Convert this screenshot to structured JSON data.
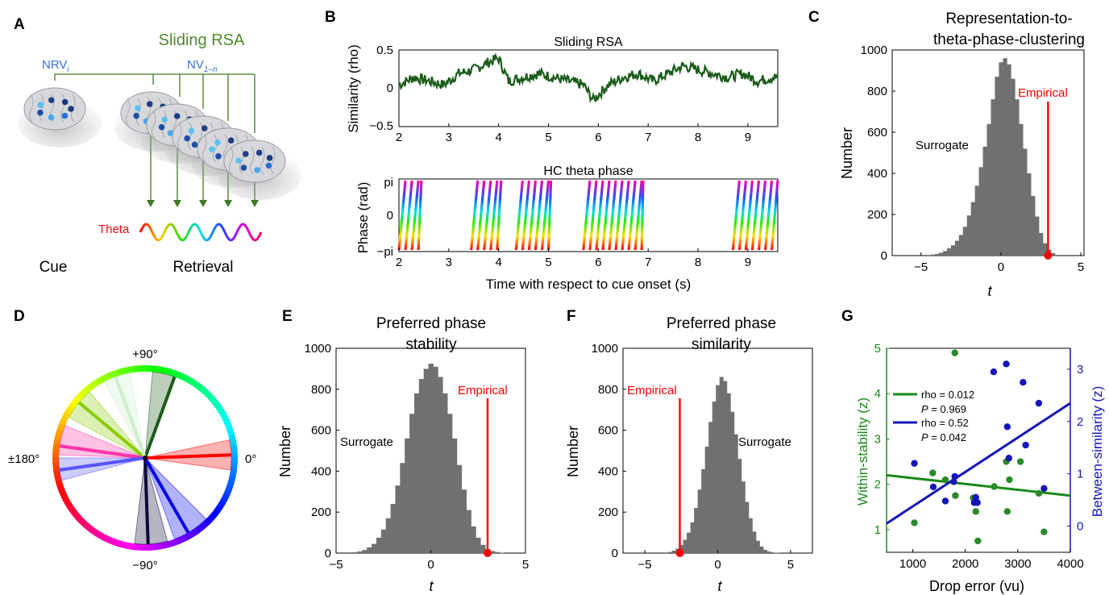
{
  "panel_labels": [
    "A",
    "B",
    "C",
    "D",
    "E",
    "F",
    "G"
  ],
  "colors": {
    "green": "#1a5c1a",
    "gray": "#707070",
    "red": "#ff0000",
    "blue": "#1515b8",
    "lightgreen": "#1a8a1a",
    "sliding_rsa_title": "#4f8a2c",
    "nrv_blue": "#3b6fd4"
  },
  "panel_a": {
    "title": "Sliding RSA",
    "nrv_label": "NRV",
    "nrv_sub": "i",
    "nv_label": "NV",
    "nv_sub": "1–n",
    "theta_label": "Theta",
    "cue_label": "Cue",
    "retrieval_label": "Retrieval",
    "icons": [
      "brain-icon"
    ]
  },
  "panel_b": {
    "rsa_title": "Sliding RSA",
    "rsa_ylabel": "Similarity (rho)",
    "rsa_yticks": [
      "0.5",
      "0",
      "−0.5"
    ],
    "phase_title": "HC theta phase",
    "phase_ylabel": "Phase (rad)",
    "phase_yticks": [
      "pi",
      "0",
      "−pi"
    ],
    "xticks": [
      "2",
      "3",
      "4",
      "5",
      "6",
      "7",
      "8",
      "9"
    ],
    "xlabel": "Time with respect to cue onset (s)"
  },
  "panel_c": {
    "title_line1": "Representation-to-",
    "title_line2": "theta-phase-clustering",
    "ylabel": "Number",
    "xlabel": "t",
    "surrogate_label": "Surrogate",
    "empirical_label": "Empirical",
    "yticks": [
      "1000",
      "800",
      "600",
      "400",
      "200",
      "0"
    ],
    "xticks": [
      "−5",
      "0",
      "5"
    ]
  },
  "panel_d": {
    "labels": [
      "+90°",
      "0°",
      "−90°",
      "±180°"
    ]
  },
  "panel_e": {
    "title_line1": "Preferred phase",
    "title_line2": "stability",
    "ylabel": "Number",
    "xlabel": "t",
    "surrogate_label": "Surrogate",
    "empirical_label": "Empirical",
    "yticks": [
      "1000",
      "800",
      "600",
      "400",
      "200",
      "0"
    ],
    "xticks": [
      "−5",
      "0",
      "5"
    ]
  },
  "panel_f": {
    "title_line1": "Preferred phase",
    "title_line2": "similarity",
    "ylabel": "Number",
    "xlabel": "t",
    "surrogate_label": "Surrogate",
    "empirical_label": "Empirical",
    "yticks": [
      "1000",
      "800",
      "600",
      "400",
      "200",
      "0"
    ],
    "xticks": [
      "−5",
      "0",
      "5"
    ]
  },
  "panel_g": {
    "ylabel_left": "Within-stability (z)",
    "ylabel_right": "Between-similarity (z)",
    "xlabel": "Drop error (vu)",
    "legend_green_rho": "rho = 0.012",
    "legend_green_p_label": "P",
    "legend_green_p": " = 0.969",
    "legend_blue_rho": "rho = 0.52",
    "legend_blue_p_label": "P",
    "legend_blue_p": " = 0.042",
    "yticks_left": [
      "5",
      "4",
      "3",
      "2",
      "1"
    ],
    "yticks_right": [
      "3",
      "2",
      "1",
      "0"
    ],
    "xticks": [
      "1000",
      "2000",
      "3000",
      "4000"
    ]
  },
  "chart_data": [
    {
      "panel": "B-top",
      "type": "line",
      "title": "Sliding RSA",
      "ylabel": "Similarity (rho)",
      "xlabel": "Time with respect to cue onset (s)",
      "xlim": [
        2,
        9.6
      ],
      "ylim": [
        -0.5,
        0.5
      ],
      "series": [
        {
          "x": [
            2.0,
            2.3,
            2.6,
            2.9,
            3.2,
            3.5,
            3.8,
            4.0,
            4.2,
            4.5,
            4.8,
            5.1,
            5.4,
            5.7,
            5.9,
            6.2,
            6.5,
            6.8,
            7.1,
            7.4,
            7.7,
            8.0,
            8.3,
            8.6,
            8.9,
            9.2,
            9.5
          ],
          "y": [
            0.05,
            0.15,
            0.1,
            0.05,
            0.2,
            0.25,
            0.35,
            0.4,
            0.1,
            0.15,
            0.2,
            0.15,
            0.1,
            0.05,
            -0.15,
            0.05,
            0.15,
            0.2,
            0.1,
            0.2,
            0.3,
            0.25,
            0.2,
            0.15,
            0.2,
            0.1,
            0.15
          ]
        }
      ]
    },
    {
      "panel": "B-bottom",
      "type": "line",
      "title": "HC theta phase",
      "ylabel": "Phase (rad)",
      "xlabel": "Time with respect to cue onset (s)",
      "xlim": [
        2,
        9.6
      ],
      "segments_s": [
        [
          2.0,
          2.45
        ],
        [
          3.45,
          4.05
        ],
        [
          4.35,
          5.05
        ],
        [
          5.7,
          6.9
        ],
        [
          8.7,
          9.6
        ]
      ],
      "cycle_period_s": 0.13
    },
    {
      "panel": "C",
      "type": "bar",
      "title": "Representation-to-theta-phase-clustering",
      "xlabel": "t",
      "ylabel": "Number",
      "xlim": [
        -6.8,
        5.2
      ],
      "ylim": [
        0,
        1000
      ],
      "bin_centers": [
        -4.5,
        -4.25,
        -4.0,
        -3.75,
        -3.5,
        -3.25,
        -3.0,
        -2.75,
        -2.5,
        -2.25,
        -2.0,
        -1.75,
        -1.5,
        -1.25,
        -1.0,
        -0.75,
        -0.5,
        -0.25,
        0.0,
        0.25,
        0.5,
        0.75,
        1.0,
        1.25,
        1.5,
        1.75,
        2.0,
        2.25,
        2.5,
        2.75,
        3.0,
        3.25
      ],
      "counts": [
        3,
        5,
        8,
        14,
        22,
        35,
        50,
        72,
        100,
        140,
        195,
        260,
        340,
        430,
        530,
        640,
        760,
        870,
        940,
        960,
        930,
        860,
        760,
        640,
        520,
        400,
        290,
        190,
        110,
        60,
        30,
        12
      ],
      "empirical_t": 2.95
    },
    {
      "panel": "E",
      "type": "bar",
      "title": "Preferred phase stability",
      "xlabel": "t",
      "ylabel": "Number",
      "xlim": [
        -5,
        5
      ],
      "ylim": [
        0,
        1000
      ],
      "bin_centers": [
        -4.0,
        -3.75,
        -3.5,
        -3.25,
        -3.0,
        -2.75,
        -2.5,
        -2.25,
        -2.0,
        -1.75,
        -1.5,
        -1.25,
        -1.0,
        -0.75,
        -0.5,
        -0.25,
        0.0,
        0.25,
        0.5,
        0.75,
        1.0,
        1.25,
        1.5,
        1.75,
        2.0,
        2.25,
        2.5,
        2.75,
        3.0,
        3.25,
        3.5,
        3.75
      ],
      "counts": [
        4,
        8,
        15,
        28,
        45,
        75,
        115,
        170,
        240,
        330,
        440,
        560,
        680,
        780,
        850,
        900,
        925,
        910,
        860,
        780,
        680,
        560,
        430,
        310,
        210,
        130,
        75,
        40,
        20,
        10,
        5,
        2
      ],
      "empirical_t": 3.0
    },
    {
      "panel": "F",
      "type": "bar",
      "title": "Preferred phase similarity",
      "xlabel": "t",
      "ylabel": "Number",
      "xlim": [
        -6.5,
        6.5
      ],
      "ylim": [
        0,
        1000
      ],
      "bin_centers": [
        -3.5,
        -3.25,
        -3.0,
        -2.75,
        -2.5,
        -2.25,
        -2.0,
        -1.75,
        -1.5,
        -1.25,
        -1.0,
        -0.75,
        -0.5,
        -0.25,
        0.0,
        0.25,
        0.5,
        0.75,
        1.0,
        1.25,
        1.5,
        1.75,
        2.0,
        2.25,
        2.5,
        2.75,
        3.0,
        3.25,
        3.5,
        3.75,
        4.0,
        4.25
      ],
      "counts": [
        3,
        6,
        12,
        22,
        40,
        65,
        100,
        150,
        220,
        310,
        410,
        520,
        640,
        740,
        820,
        860,
        840,
        780,
        690,
        580,
        460,
        350,
        250,
        170,
        105,
        60,
        32,
        16,
        8,
        4,
        2,
        1
      ],
      "empirical_t": -2.6
    },
    {
      "panel": "G",
      "type": "scatter",
      "xlabel": "Drop error (vu)",
      "ylabel": "Within-stability (z)",
      "y2label": "Between-similarity (z)",
      "xlim": [
        500,
        4000
      ],
      "ylim": [
        0.5,
        5
      ],
      "y2lim": [
        -0.5,
        3.4
      ],
      "series": [
        {
          "name": "rho = 0.012",
          "x": [
            1030,
            1380,
            1620,
            1800,
            1810,
            2150,
            2200,
            2240,
            2550,
            2780,
            2800,
            2840,
            3050,
            3400,
            3500
          ],
          "y": [
            1.15,
            2.25,
            2.1,
            4.9,
            1.75,
            1.7,
            1.4,
            0.75,
            1.95,
            2.5,
            1.4,
            2.1,
            2.5,
            1.8,
            0.95
          ],
          "trend": [
            [
              500,
              2.2
            ],
            [
              4000,
              1.75
            ]
          ]
        },
        {
          "name": "rho = 0.52",
          "x": [
            1030,
            1390,
            1620,
            1780,
            1800,
            2170,
            2200,
            2230,
            2540,
            2780,
            2800,
            2830,
            3100,
            3150,
            3400,
            3500
          ],
          "y": [
            1.2,
            0.75,
            0.48,
            0.85,
            0.95,
            0.45,
            0.55,
            0.45,
            2.95,
            3.1,
            1.9,
            1.3,
            2.75,
            1.55,
            2.35,
            0.72
          ],
          "trend": [
            [
              500,
              0.05
            ],
            [
              4000,
              2.35
            ]
          ]
        }
      ]
    }
  ]
}
